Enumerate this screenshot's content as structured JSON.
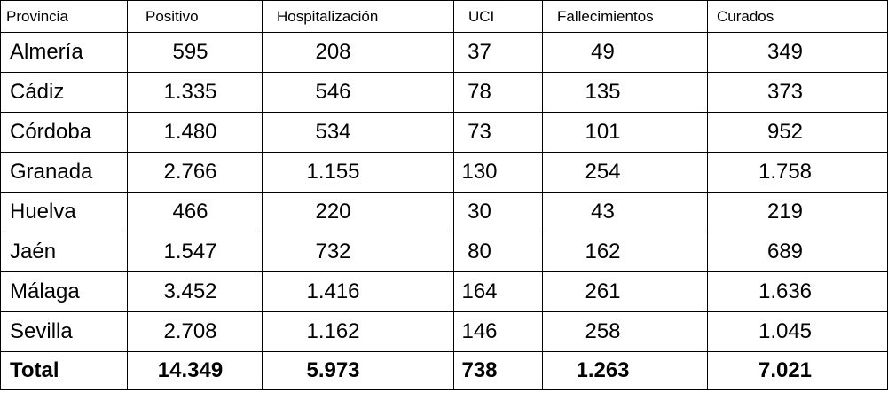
{
  "table": {
    "headers": [
      "Provincia",
      "Positivo",
      "Hospitalización",
      "UCI",
      "Fallecimientos",
      "Curados"
    ],
    "rows": [
      [
        "Almería",
        "595",
        "208",
        "37",
        "49",
        "349"
      ],
      [
        "Cádiz",
        "1.335",
        "546",
        "78",
        "135",
        "373"
      ],
      [
        "Córdoba",
        "1.480",
        "534",
        "73",
        "101",
        "952"
      ],
      [
        "Granada",
        "2.766",
        "1.155",
        "130",
        "254",
        "1.758"
      ],
      [
        "Huelva",
        "466",
        "220",
        "30",
        "43",
        "219"
      ],
      [
        "Jaén",
        "1.547",
        "732",
        "80",
        "162",
        "689"
      ],
      [
        "Málaga",
        "3.452",
        "1.416",
        "164",
        "261",
        "1.636"
      ],
      [
        "Sevilla",
        "2.708",
        "1.162",
        "146",
        "258",
        "1.045"
      ]
    ],
    "total": [
      "Total",
      "14.349",
      "5.973",
      "738",
      "1.263",
      "7.021"
    ]
  }
}
